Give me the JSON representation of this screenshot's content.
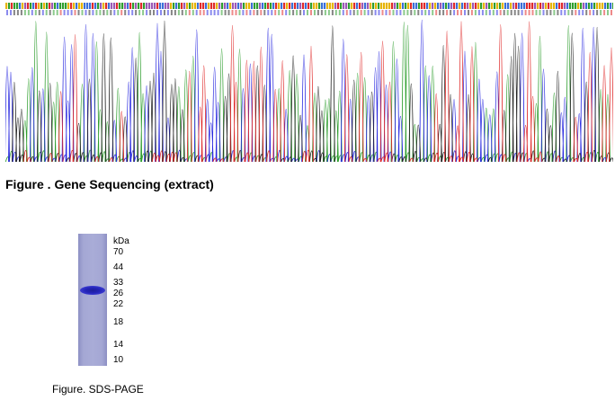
{
  "sequencing": {
    "caption": "Figure . Gene Sequencing (extract)",
    "trace_colors": {
      "A": "#2e9e2e",
      "C": "#2a2ae0",
      "G": "#222222",
      "T": "#e02a2a"
    }
  },
  "sds_page": {
    "unit": "kDa",
    "markers": [
      "70",
      "44",
      "33",
      "26",
      "22",
      "18",
      "14",
      "10"
    ],
    "caption": "Figure. SDS-PAGE",
    "band_color": "#2424b8"
  }
}
